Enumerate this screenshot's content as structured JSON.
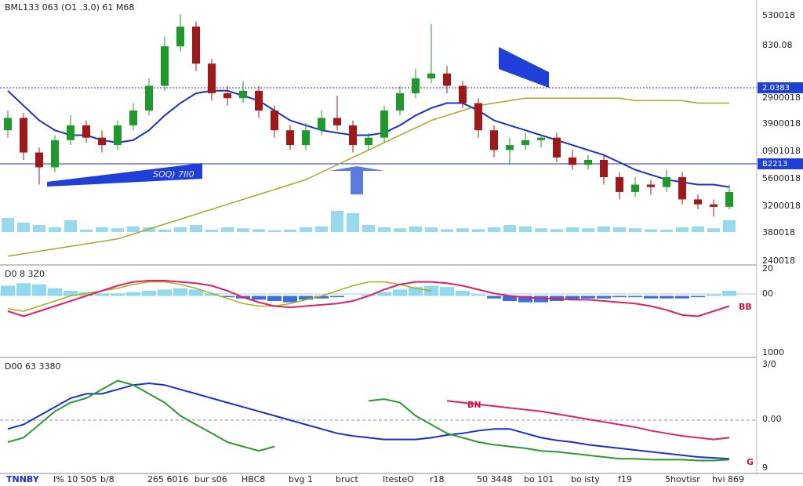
{
  "header": {
    "title": "BML133 063 (O1 .3,0) 61 M68"
  },
  "main": {
    "ylim": [
      0,
      100
    ],
    "axis_labels": [
      "530018",
      "830.08",
      "2900018",
      "3900018",
      "0901018",
      "5600018",
      "3200018",
      "380018",
      "240018"
    ],
    "price_tags": [
      "2.0383",
      "B2213"
    ],
    "banner": "SOQ) 7II0",
    "candles": [
      [
        52,
        60,
        49,
        57
      ],
      [
        57,
        59,
        40,
        43
      ],
      [
        43,
        45,
        30,
        37
      ],
      [
        37,
        50,
        35,
        48
      ],
      [
        48,
        58,
        46,
        54
      ],
      [
        54,
        56,
        47,
        49
      ],
      [
        49,
        52,
        43,
        46
      ],
      [
        46,
        56,
        44,
        54
      ],
      [
        54,
        63,
        52,
        60
      ],
      [
        60,
        73,
        58,
        70
      ],
      [
        70,
        90,
        68,
        86
      ],
      [
        86,
        99,
        84,
        94
      ],
      [
        94,
        96,
        76,
        79
      ],
      [
        79,
        81,
        64,
        67
      ],
      [
        67,
        70,
        62,
        65
      ],
      [
        65,
        72,
        63,
        68
      ],
      [
        68,
        70,
        57,
        60
      ],
      [
        60,
        62,
        49,
        52
      ],
      [
        52,
        54,
        44,
        46
      ],
      [
        46,
        55,
        44,
        52
      ],
      [
        52,
        60,
        50,
        57
      ],
      [
        57,
        66,
        52,
        54
      ],
      [
        54,
        56,
        43,
        46
      ],
      [
        46,
        51,
        44,
        49
      ],
      [
        49,
        62,
        47,
        60
      ],
      [
        60,
        70,
        58,
        67
      ],
      [
        67,
        77,
        65,
        73
      ],
      [
        73,
        95,
        71,
        75
      ],
      [
        75,
        78,
        67,
        70
      ],
      [
        70,
        72,
        61,
        63
      ],
      [
        63,
        65,
        49,
        52
      ],
      [
        52,
        54,
        41,
        44
      ],
      [
        44,
        49,
        38,
        46
      ],
      [
        46,
        51,
        44,
        48
      ],
      [
        48,
        50,
        45,
        49
      ],
      [
        49,
        51,
        39,
        41
      ],
      [
        41,
        44,
        36,
        38
      ],
      [
        38,
        42,
        36,
        40
      ],
      [
        40,
        42,
        30,
        33
      ],
      [
        33,
        35,
        24,
        27
      ],
      [
        27,
        33,
        25,
        30
      ],
      [
        30,
        32,
        26,
        29
      ],
      [
        29,
        36,
        27,
        33
      ],
      [
        33,
        35,
        22,
        24
      ],
      [
        24,
        26,
        20,
        22
      ],
      [
        22,
        24,
        17,
        21
      ],
      [
        21,
        30,
        20,
        27
      ]
    ],
    "ma_blue": [
      68,
      62,
      56,
      52,
      50,
      50,
      48,
      47,
      48,
      52,
      58,
      63,
      67,
      68,
      68,
      66,
      64,
      60,
      56,
      54,
      52,
      51,
      50,
      50,
      51,
      54,
      58,
      61,
      63,
      63,
      60,
      56,
      54,
      52,
      50,
      48,
      46,
      44,
      42,
      39,
      36,
      34,
      32,
      31,
      30,
      30,
      29
    ],
    "ma_olive": [
      1,
      2,
      3,
      4,
      5,
      6,
      7,
      8,
      10,
      12,
      14,
      16,
      18,
      20,
      22,
      24,
      26,
      28,
      30,
      32,
      35,
      38,
      41,
      44,
      47,
      50,
      53,
      56,
      58,
      60,
      62,
      63,
      64,
      65,
      65,
      65,
      65,
      65,
      65,
      65,
      64,
      64,
      64,
      64,
      63,
      63,
      63
    ],
    "volume": [
      30,
      20,
      15,
      10,
      25,
      5,
      10,
      8,
      12,
      10,
      5,
      10,
      15,
      5,
      10,
      8,
      6,
      4,
      5,
      10,
      12,
      45,
      40,
      15,
      10,
      8,
      12,
      10,
      6,
      8,
      6,
      10,
      15,
      12,
      8,
      6,
      10,
      8,
      12,
      10,
      8,
      6,
      5,
      10,
      12,
      8,
      25
    ]
  },
  "macd": {
    "label": "D0 8 3Z0",
    "ylim": [
      -100,
      100
    ],
    "axis_labels": [
      "20",
      "00",
      "1000"
    ],
    "marker": "BB",
    "histogram": [
      40,
      50,
      45,
      30,
      20,
      15,
      10,
      10,
      15,
      20,
      25,
      30,
      25,
      10,
      -5,
      -10,
      -15,
      -20,
      -25,
      -15,
      -10,
      -5,
      0,
      5,
      15,
      25,
      35,
      40,
      35,
      20,
      5,
      -10,
      -20,
      -25,
      -25,
      -20,
      -15,
      -10,
      -10,
      -5,
      -5,
      -10,
      -10,
      -10,
      -5,
      5,
      20
    ],
    "line_red": [
      -60,
      -80,
      -60,
      -40,
      -20,
      0,
      20,
      40,
      55,
      60,
      60,
      55,
      50,
      40,
      20,
      -5,
      -25,
      -40,
      -45,
      -40,
      -35,
      -30,
      -20,
      0,
      25,
      45,
      55,
      55,
      50,
      40,
      25,
      10,
      0,
      -5,
      -10,
      -10,
      -15,
      -15,
      -20,
      -25,
      -30,
      -40,
      -55,
      -75,
      -80,
      -60,
      -40
    ],
    "line_olive": [
      -50,
      -60,
      -40,
      -20,
      0,
      10,
      20,
      30,
      45,
      55,
      55,
      45,
      30,
      10,
      -10,
      -30,
      -40,
      -40,
      -30,
      -15,
      0,
      20,
      40,
      55,
      55,
      45,
      30,
      20,
      null,
      null,
      null,
      null,
      null,
      null,
      null,
      null,
      null,
      null,
      null,
      null,
      null,
      null,
      null,
      null,
      null,
      null,
      null
    ]
  },
  "osc": {
    "label": "D00 63 3380",
    "ylim": [
      0,
      100
    ],
    "axis_labels": [
      "3/0",
      "0.00",
      "9"
    ],
    "marker_a": "BN",
    "marker_b": "G",
    "line_blue": [
      40,
      45,
      55,
      65,
      75,
      80,
      80,
      85,
      90,
      92,
      90,
      85,
      80,
      75,
      70,
      65,
      60,
      55,
      50,
      45,
      40,
      35,
      32,
      30,
      28,
      28,
      28,
      30,
      33,
      35,
      38,
      40,
      40,
      35,
      30,
      27,
      25,
      22,
      20,
      18,
      16,
      14,
      12,
      10,
      8,
      7,
      6
    ],
    "line_green": [
      25,
      30,
      45,
      60,
      70,
      75,
      85,
      95,
      90,
      80,
      70,
      55,
      45,
      35,
      25,
      20,
      15,
      20,
      null,
      null,
      null,
      null,
      null,
      72,
      74,
      70,
      55,
      45,
      35,
      30,
      25,
      22,
      20,
      18,
      15,
      14,
      12,
      10,
      8,
      6,
      6,
      5,
      5,
      5,
      4,
      4,
      5
    ],
    "line_pink": [
      null,
      null,
      null,
      null,
      null,
      null,
      null,
      null,
      null,
      null,
      null,
      null,
      null,
      null,
      null,
      null,
      null,
      null,
      null,
      null,
      null,
      null,
      null,
      null,
      null,
      null,
      null,
      null,
      72,
      70,
      68,
      66,
      64,
      62,
      60,
      57,
      54,
      51,
      48,
      45,
      42,
      38,
      35,
      32,
      30,
      28,
      30
    ]
  },
  "footer": {
    "labels": [
      "TNNBY",
      "I% 10 505",
      "b/8",
      "265 6016",
      "bur s06",
      "HBC8",
      "bvg 1",
      "bruct",
      "ItesteO",
      "r18",
      "50 3448",
      "bo 101",
      "bo isty",
      "f19",
      "5hovtisr",
      "hvi 869"
    ]
  }
}
